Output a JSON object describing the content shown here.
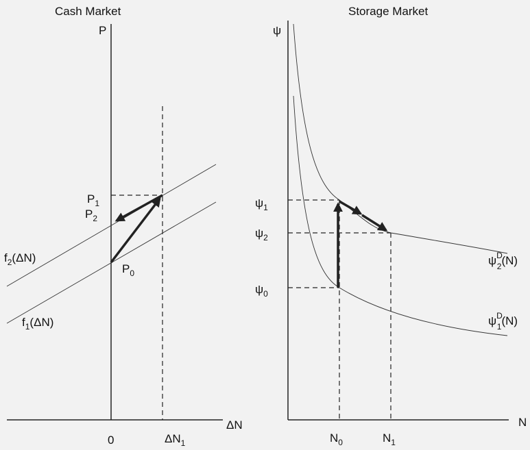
{
  "cash": {
    "title": "Cash Market",
    "y_axis": "P",
    "x_axis": "ΔN",
    "origin": "0",
    "x_mark": {
      "base": "ΔN",
      "sub": "1"
    },
    "p1": {
      "base": "P",
      "sub": "1"
    },
    "p2": {
      "base": "P",
      "sub": "2"
    },
    "p0": {
      "base": "P",
      "sub": "0"
    },
    "f2": {
      "base": "f",
      "sub": "2",
      "tail": "(ΔN)"
    },
    "f1": {
      "base": "f",
      "sub": "1",
      "tail": "(ΔN)"
    }
  },
  "storage": {
    "title": "Storage Market",
    "y_axis": "ψ",
    "x_axis": "N",
    "psi1": {
      "base": "ψ",
      "sub": "1"
    },
    "psi2": {
      "base": "ψ",
      "sub": "2"
    },
    "psi0": {
      "base": "ψ",
      "sub": "0"
    },
    "n0": {
      "base": "N",
      "sub": "0"
    },
    "n1": {
      "base": "N",
      "sub": "1"
    },
    "d2": {
      "base": "ψ",
      "sub": "2",
      "sup": "D",
      "tail": "(N)"
    },
    "d1": {
      "base": "ψ",
      "sub": "1",
      "sup": "D",
      "tail": "(N)"
    }
  }
}
